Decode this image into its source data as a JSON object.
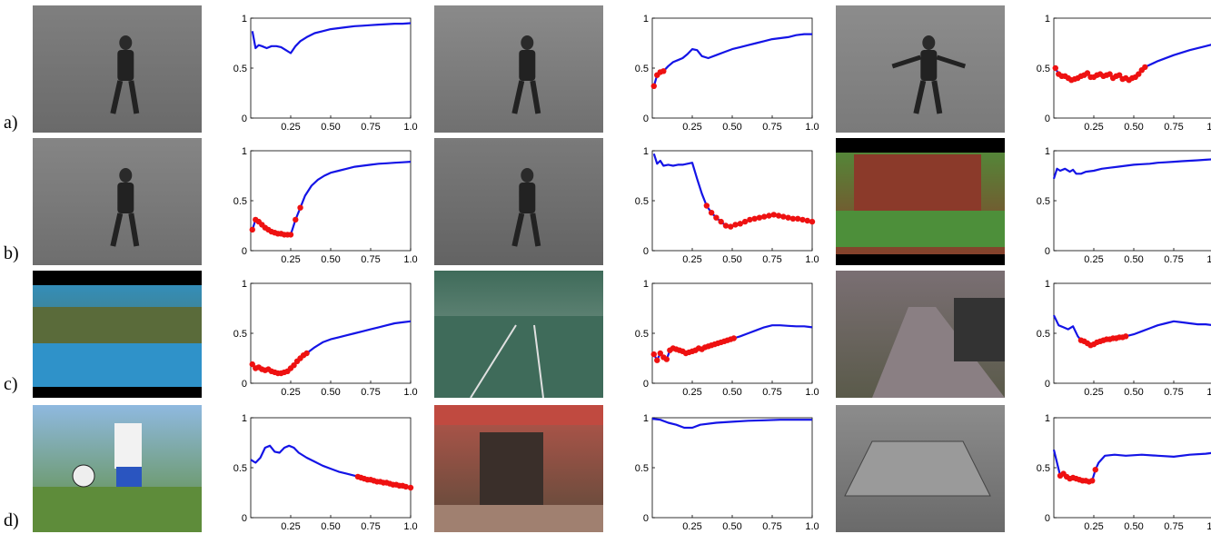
{
  "row_labels": [
    "a)",
    "b)",
    "c)",
    "d)"
  ],
  "colors": {
    "curve": "#1414e6",
    "marker": "#ee1111",
    "axis": "#000000"
  },
  "thumbnails": [
    {
      "scene": "person-walking-gray",
      "palette": [
        "#7f7f7f",
        "#6a6a6a"
      ],
      "letterbox": false
    },
    {
      "scene": "person-walking-gray",
      "palette": [
        "#8a8a8a",
        "#707070"
      ],
      "letterbox": false
    },
    {
      "scene": "person-arms-out-gray",
      "palette": [
        "#8c8c8c",
        "#7a7a7a"
      ],
      "letterbox": false
    },
    {
      "scene": "person-walking-gray",
      "palette": [
        "#858585",
        "#6e6e6e"
      ],
      "letterbox": false
    },
    {
      "scene": "person-standing-field-gray",
      "palette": [
        "#7a7a7a",
        "#636363"
      ],
      "letterbox": false
    },
    {
      "scene": "person-batting-house",
      "palette": [
        "#4d8f3a",
        "#8b3a2a"
      ],
      "letterbox": true
    },
    {
      "scene": "diving-pool",
      "palette": [
        "#2f92c9",
        "#5a6b3a"
      ],
      "letterbox": true
    },
    {
      "scene": "tennis-court",
      "palette": [
        "#3f6b5a",
        "#8da59a"
      ],
      "letterbox": false
    },
    {
      "scene": "cyclists-street",
      "palette": [
        "#7a6f73",
        "#5a5a4a"
      ],
      "letterbox": false
    },
    {
      "scene": "soccer-juggling",
      "palette": [
        "#8fb9e0",
        "#5e8c3a"
      ],
      "letterbox": false
    },
    {
      "scene": "doorway-cafe",
      "palette": [
        "#b5554a",
        "#5a4a3a"
      ],
      "letterbox": false
    },
    {
      "scene": "car-parking-lot",
      "palette": [
        "#8c8c8c",
        "#6a6a6a"
      ],
      "letterbox": false
    }
  ],
  "chart_data": [
    {
      "type": "line",
      "x": [
        0.01,
        0.03,
        0.05,
        0.07,
        0.1,
        0.13,
        0.16,
        0.19,
        0.22,
        0.25,
        0.28,
        0.31,
        0.35,
        0.4,
        0.45,
        0.5,
        0.55,
        0.6,
        0.65,
        0.7,
        0.75,
        0.8,
        0.85,
        0.9,
        0.95,
        1.0
      ],
      "y": [
        0.87,
        0.7,
        0.73,
        0.72,
        0.7,
        0.72,
        0.72,
        0.71,
        0.68,
        0.65,
        0.72,
        0.77,
        0.81,
        0.85,
        0.87,
        0.89,
        0.9,
        0.91,
        0.92,
        0.925,
        0.93,
        0.935,
        0.94,
        0.945,
        0.945,
        0.95
      ],
      "highlight_x": [],
      "xticks": [
        "0.25",
        "0.50",
        "0.75",
        "1.0"
      ],
      "yticks": [
        "0",
        "0.5",
        "1"
      ],
      "xlim": [
        0,
        1
      ],
      "ylim": [
        0,
        1
      ]
    },
    {
      "type": "line",
      "x": [
        0.01,
        0.03,
        0.05,
        0.07,
        0.1,
        0.13,
        0.16,
        0.19,
        0.22,
        0.25,
        0.28,
        0.31,
        0.35,
        0.4,
        0.45,
        0.5,
        0.55,
        0.6,
        0.65,
        0.7,
        0.75,
        0.8,
        0.85,
        0.9,
        0.95,
        1.0
      ],
      "y": [
        0.32,
        0.43,
        0.46,
        0.47,
        0.52,
        0.56,
        0.58,
        0.6,
        0.64,
        0.69,
        0.68,
        0.62,
        0.6,
        0.63,
        0.66,
        0.69,
        0.71,
        0.73,
        0.75,
        0.77,
        0.79,
        0.8,
        0.81,
        0.83,
        0.84,
        0.84
      ],
      "highlight_x": [
        0.01,
        0.03,
        0.05,
        0.07
      ],
      "xticks": [
        "0.25",
        "0.50",
        "0.75",
        "1.0"
      ],
      "yticks": [
        "0",
        "0.5",
        "1"
      ],
      "xlim": [
        0,
        1
      ],
      "ylim": [
        0,
        1
      ]
    },
    {
      "type": "line",
      "x": [
        0.01,
        0.03,
        0.05,
        0.07,
        0.09,
        0.11,
        0.13,
        0.15,
        0.17,
        0.19,
        0.21,
        0.23,
        0.25,
        0.27,
        0.29,
        0.31,
        0.33,
        0.35,
        0.37,
        0.39,
        0.41,
        0.43,
        0.45,
        0.47,
        0.49,
        0.51,
        0.53,
        0.55,
        0.57,
        0.65,
        0.75,
        0.85,
        0.95,
        1.0
      ],
      "y": [
        0.5,
        0.44,
        0.42,
        0.42,
        0.4,
        0.38,
        0.39,
        0.4,
        0.42,
        0.43,
        0.45,
        0.41,
        0.41,
        0.43,
        0.44,
        0.42,
        0.43,
        0.44,
        0.4,
        0.42,
        0.43,
        0.39,
        0.4,
        0.38,
        0.4,
        0.41,
        0.44,
        0.48,
        0.51,
        0.57,
        0.63,
        0.68,
        0.72,
        0.74
      ],
      "highlight_x": [
        0.01,
        0.03,
        0.05,
        0.07,
        0.09,
        0.11,
        0.13,
        0.15,
        0.17,
        0.19,
        0.21,
        0.23,
        0.25,
        0.27,
        0.29,
        0.31,
        0.33,
        0.35,
        0.37,
        0.39,
        0.41,
        0.43,
        0.45,
        0.47,
        0.49,
        0.51,
        0.53,
        0.55,
        0.57
      ],
      "xticks": [
        "0.25",
        "0.50",
        "0.75",
        "1.0"
      ],
      "yticks": [
        "0",
        "0.5",
        "1"
      ],
      "xlim": [
        0,
        1
      ],
      "ylim": [
        0,
        1
      ]
    },
    {
      "type": "line",
      "x": [
        0.01,
        0.03,
        0.05,
        0.07,
        0.09,
        0.11,
        0.13,
        0.15,
        0.17,
        0.19,
        0.21,
        0.23,
        0.25,
        0.28,
        0.31,
        0.34,
        0.38,
        0.42,
        0.46,
        0.5,
        0.55,
        0.6,
        0.65,
        0.7,
        0.75,
        0.8,
        0.85,
        0.9,
        0.95,
        1.0
      ],
      "y": [
        0.21,
        0.31,
        0.29,
        0.26,
        0.23,
        0.21,
        0.19,
        0.18,
        0.17,
        0.17,
        0.16,
        0.16,
        0.16,
        0.31,
        0.43,
        0.55,
        0.65,
        0.71,
        0.75,
        0.78,
        0.8,
        0.82,
        0.84,
        0.85,
        0.86,
        0.87,
        0.875,
        0.88,
        0.885,
        0.89
      ],
      "highlight_x": [
        0.01,
        0.03,
        0.05,
        0.07,
        0.09,
        0.11,
        0.13,
        0.15,
        0.17,
        0.19,
        0.21,
        0.23,
        0.25,
        0.28,
        0.31
      ],
      "xticks": [
        "0.25",
        "0.50",
        "0.75",
        "1.0"
      ],
      "yticks": [
        "0",
        "0.5",
        "1"
      ],
      "xlim": [
        0,
        1
      ],
      "ylim": [
        0,
        1
      ]
    },
    {
      "type": "line",
      "x": [
        0.01,
        0.03,
        0.05,
        0.07,
        0.1,
        0.13,
        0.16,
        0.19,
        0.22,
        0.25,
        0.28,
        0.31,
        0.34,
        0.37,
        0.4,
        0.43,
        0.46,
        0.49,
        0.52,
        0.55,
        0.58,
        0.61,
        0.64,
        0.67,
        0.7,
        0.73,
        0.76,
        0.79,
        0.82,
        0.85,
        0.88,
        0.91,
        0.94,
        0.97,
        1.0
      ],
      "y": [
        0.97,
        0.87,
        0.9,
        0.85,
        0.86,
        0.85,
        0.86,
        0.86,
        0.87,
        0.88,
        0.72,
        0.57,
        0.45,
        0.38,
        0.33,
        0.29,
        0.25,
        0.24,
        0.26,
        0.27,
        0.29,
        0.31,
        0.32,
        0.33,
        0.34,
        0.35,
        0.36,
        0.35,
        0.34,
        0.33,
        0.32,
        0.32,
        0.31,
        0.3,
        0.29
      ],
      "highlight_x": [
        0.34,
        0.37,
        0.4,
        0.43,
        0.46,
        0.49,
        0.52,
        0.55,
        0.58,
        0.61,
        0.64,
        0.67,
        0.7,
        0.73,
        0.76,
        0.79,
        0.82,
        0.85,
        0.88,
        0.91,
        0.94,
        0.97,
        1.0
      ],
      "xticks": [
        "0.25",
        "0.50",
        "0.75",
        "1.0"
      ],
      "yticks": [
        "0",
        "0.5",
        "1"
      ],
      "xlim": [
        0,
        1
      ],
      "ylim": [
        0,
        1
      ]
    },
    {
      "type": "line",
      "x": [
        0.0,
        0.02,
        0.04,
        0.07,
        0.1,
        0.12,
        0.14,
        0.17,
        0.2,
        0.25,
        0.3,
        0.35,
        0.4,
        0.45,
        0.5,
        0.55,
        0.6,
        0.65,
        0.7,
        0.75,
        0.8,
        0.85,
        0.9,
        0.95,
        1.0
      ],
      "y": [
        0.72,
        0.82,
        0.8,
        0.82,
        0.79,
        0.81,
        0.77,
        0.77,
        0.79,
        0.8,
        0.82,
        0.83,
        0.84,
        0.85,
        0.86,
        0.865,
        0.87,
        0.88,
        0.885,
        0.89,
        0.895,
        0.9,
        0.905,
        0.91,
        0.915
      ],
      "highlight_x": [],
      "xticks": [
        "0.25",
        "0.50",
        "0.75",
        "1.0"
      ],
      "yticks": [
        "0",
        "0.5",
        "1"
      ],
      "xlim": [
        0,
        1
      ],
      "ylim": [
        0,
        1
      ]
    },
    {
      "type": "line",
      "x": [
        0.01,
        0.03,
        0.05,
        0.07,
        0.09,
        0.11,
        0.13,
        0.15,
        0.17,
        0.19,
        0.21,
        0.23,
        0.25,
        0.27,
        0.29,
        0.31,
        0.33,
        0.35,
        0.4,
        0.45,
        0.5,
        0.55,
        0.6,
        0.65,
        0.7,
        0.75,
        0.8,
        0.85,
        0.9,
        0.95,
        1.0
      ],
      "y": [
        0.19,
        0.15,
        0.16,
        0.14,
        0.13,
        0.14,
        0.12,
        0.11,
        0.1,
        0.1,
        0.11,
        0.12,
        0.15,
        0.18,
        0.22,
        0.25,
        0.28,
        0.3,
        0.36,
        0.41,
        0.44,
        0.46,
        0.48,
        0.5,
        0.52,
        0.54,
        0.56,
        0.58,
        0.6,
        0.61,
        0.62
      ],
      "highlight_x": [
        0.01,
        0.03,
        0.05,
        0.07,
        0.09,
        0.11,
        0.13,
        0.15,
        0.17,
        0.19,
        0.21,
        0.23,
        0.25,
        0.27,
        0.29,
        0.31,
        0.33,
        0.35
      ],
      "xticks": [
        "0.25",
        "0.50",
        "0.75",
        "1.0"
      ],
      "yticks": [
        "0",
        "0.5",
        "1"
      ],
      "xlim": [
        0,
        1
      ],
      "ylim": [
        0,
        1
      ]
    },
    {
      "type": "line",
      "x": [
        0.01,
        0.03,
        0.05,
        0.07,
        0.09,
        0.11,
        0.13,
        0.15,
        0.17,
        0.19,
        0.21,
        0.23,
        0.25,
        0.27,
        0.29,
        0.31,
        0.33,
        0.35,
        0.37,
        0.39,
        0.41,
        0.43,
        0.45,
        0.47,
        0.49,
        0.51,
        0.55,
        0.6,
        0.65,
        0.7,
        0.75,
        0.8,
        0.85,
        0.9,
        0.95,
        1.0
      ],
      "y": [
        0.29,
        0.23,
        0.3,
        0.26,
        0.24,
        0.33,
        0.35,
        0.34,
        0.33,
        0.32,
        0.3,
        0.31,
        0.32,
        0.33,
        0.35,
        0.34,
        0.36,
        0.37,
        0.38,
        0.39,
        0.4,
        0.41,
        0.42,
        0.43,
        0.44,
        0.45,
        0.47,
        0.5,
        0.53,
        0.56,
        0.58,
        0.58,
        0.575,
        0.57,
        0.57,
        0.56
      ],
      "highlight_x": [
        0.01,
        0.03,
        0.05,
        0.07,
        0.09,
        0.11,
        0.13,
        0.15,
        0.17,
        0.19,
        0.21,
        0.23,
        0.25,
        0.27,
        0.29,
        0.31,
        0.33,
        0.35,
        0.37,
        0.39,
        0.41,
        0.43,
        0.45,
        0.47,
        0.49,
        0.51
      ],
      "xticks": [
        "0.25",
        "0.50",
        "0.75",
        "1.0"
      ],
      "yticks": [
        "0",
        "0.5",
        "1"
      ],
      "xlim": [
        0,
        1
      ],
      "ylim": [
        0,
        1
      ]
    },
    {
      "type": "line",
      "x": [
        0.0,
        0.03,
        0.06,
        0.09,
        0.12,
        0.15,
        0.17,
        0.19,
        0.21,
        0.23,
        0.25,
        0.27,
        0.29,
        0.31,
        0.33,
        0.35,
        0.37,
        0.39,
        0.41,
        0.43,
        0.45,
        0.5,
        0.55,
        0.6,
        0.65,
        0.7,
        0.75,
        0.8,
        0.85,
        0.9,
        0.95,
        1.0
      ],
      "y": [
        0.68,
        0.58,
        0.56,
        0.54,
        0.57,
        0.47,
        0.43,
        0.42,
        0.4,
        0.38,
        0.39,
        0.41,
        0.42,
        0.43,
        0.44,
        0.44,
        0.45,
        0.45,
        0.46,
        0.46,
        0.47,
        0.49,
        0.52,
        0.55,
        0.58,
        0.6,
        0.62,
        0.61,
        0.6,
        0.59,
        0.59,
        0.58
      ],
      "highlight_x": [
        0.17,
        0.19,
        0.21,
        0.23,
        0.25,
        0.27,
        0.29,
        0.31,
        0.33,
        0.35,
        0.37,
        0.39,
        0.41,
        0.43,
        0.45
      ],
      "xticks": [
        "0.25",
        "0.50",
        "0.75",
        "1.0"
      ],
      "yticks": [
        "0",
        "0.5",
        "1"
      ],
      "xlim": [
        0,
        1
      ],
      "ylim": [
        0,
        1
      ]
    },
    {
      "type": "line",
      "x": [
        0.0,
        0.03,
        0.06,
        0.09,
        0.12,
        0.15,
        0.18,
        0.21,
        0.24,
        0.27,
        0.3,
        0.35,
        0.4,
        0.45,
        0.5,
        0.55,
        0.6,
        0.65,
        0.67,
        0.69,
        0.71,
        0.73,
        0.75,
        0.77,
        0.79,
        0.81,
        0.83,
        0.85,
        0.87,
        0.89,
        0.91,
        0.93,
        0.95,
        0.97,
        1.0
      ],
      "y": [
        0.58,
        0.55,
        0.6,
        0.7,
        0.72,
        0.66,
        0.65,
        0.7,
        0.72,
        0.7,
        0.65,
        0.6,
        0.56,
        0.52,
        0.49,
        0.46,
        0.44,
        0.42,
        0.41,
        0.4,
        0.39,
        0.38,
        0.38,
        0.37,
        0.36,
        0.36,
        0.35,
        0.35,
        0.34,
        0.33,
        0.33,
        0.32,
        0.32,
        0.31,
        0.3
      ],
      "highlight_x": [
        0.67,
        0.69,
        0.71,
        0.73,
        0.75,
        0.77,
        0.79,
        0.81,
        0.83,
        0.85,
        0.87,
        0.89,
        0.91,
        0.93,
        0.95,
        0.97,
        1.0
      ],
      "xticks": [
        "0.25",
        "0.50",
        "0.75",
        "1.0"
      ],
      "yticks": [
        "0",
        "0.5",
        "1"
      ],
      "xlim": [
        0,
        1
      ],
      "ylim": [
        0,
        1
      ]
    },
    {
      "type": "line",
      "x": [
        0.0,
        0.05,
        0.1,
        0.15,
        0.2,
        0.25,
        0.3,
        0.4,
        0.5,
        0.6,
        0.7,
        0.8,
        0.9,
        1.0
      ],
      "y": [
        0.99,
        0.98,
        0.95,
        0.93,
        0.9,
        0.9,
        0.93,
        0.95,
        0.96,
        0.97,
        0.975,
        0.98,
        0.98,
        0.98
      ],
      "highlight_x": [],
      "xticks": [
        "0.25",
        "0.50",
        "0.75",
        "1.0"
      ],
      "yticks": [
        "0",
        "0.5",
        "1"
      ],
      "xlim": [
        0,
        1
      ],
      "ylim": [
        0,
        1
      ]
    },
    {
      "type": "line",
      "x": [
        0.0,
        0.02,
        0.04,
        0.06,
        0.08,
        0.1,
        0.12,
        0.14,
        0.16,
        0.18,
        0.2,
        0.22,
        0.24,
        0.26,
        0.28,
        0.32,
        0.38,
        0.45,
        0.55,
        0.65,
        0.75,
        0.85,
        0.95,
        1.0
      ],
      "y": [
        0.68,
        0.55,
        0.42,
        0.44,
        0.41,
        0.39,
        0.4,
        0.39,
        0.38,
        0.37,
        0.37,
        0.36,
        0.37,
        0.48,
        0.55,
        0.62,
        0.63,
        0.62,
        0.63,
        0.62,
        0.61,
        0.63,
        0.64,
        0.65
      ],
      "highlight_x": [
        0.04,
        0.06,
        0.08,
        0.1,
        0.12,
        0.14,
        0.16,
        0.18,
        0.2,
        0.22,
        0.24,
        0.26
      ],
      "xticks": [
        "0.25",
        "0.50",
        "0.75",
        "1.0"
      ],
      "yticks": [
        "0",
        "0.5",
        "1"
      ],
      "xlim": [
        0,
        1
      ],
      "ylim": [
        0,
        1
      ]
    }
  ]
}
